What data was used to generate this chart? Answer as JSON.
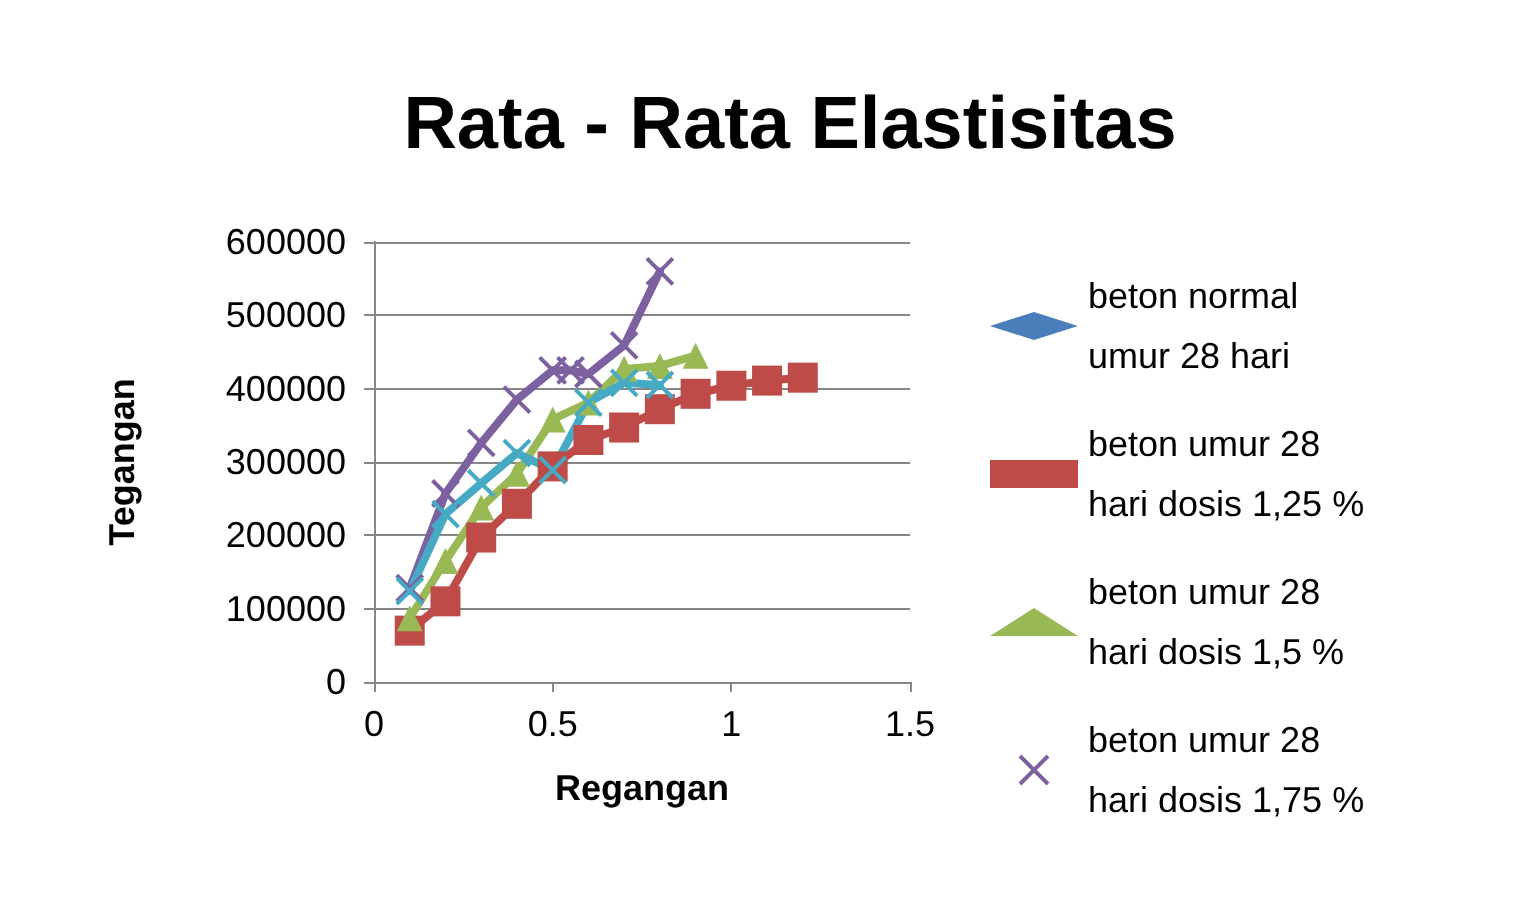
{
  "chart_data": {
    "type": "line",
    "title": "Rata - Rata Elastisitas",
    "xlabel": "Regangan",
    "ylabel": "Tegangan",
    "xlim": [
      0,
      1.5
    ],
    "xticks": [
      0,
      0.5,
      1,
      1.5
    ],
    "ylim": [
      0,
      600000
    ],
    "yticks": [
      0,
      100000,
      200000,
      300000,
      400000,
      500000,
      600000
    ],
    "grid": "y",
    "legend": "right",
    "series": [
      {
        "name": "beton normal umur 28 hari",
        "color": "#4a7ebb",
        "marker": "diamond"
      },
      {
        "name": "beton umur 28 hari dosis 1,25 %",
        "color": "#be4b48",
        "marker": "square",
        "x": [
          0.1,
          0.2,
          0.3,
          0.4,
          0.5,
          0.6,
          0.7,
          0.8,
          0.9,
          1.0,
          1.1,
          1.2
        ],
        "values": [
          70000,
          110000,
          197000,
          243000,
          294000,
          330000,
          347000,
          372000,
          393000,
          404000,
          411000,
          415000
        ]
      },
      {
        "name": "beton umur 28 hari dosis 1,5 %",
        "color": "#98b954",
        "marker": "triangle",
        "x": [
          0.1,
          0.2,
          0.3,
          0.4,
          0.5,
          0.6,
          0.7,
          0.8,
          0.9
        ],
        "values": [
          87000,
          165000,
          238000,
          284000,
          358000,
          381000,
          427000,
          431000,
          445000
        ]
      },
      {
        "name": "beton umur 28 hari dosis 1,75 %",
        "color": "#7d60a0",
        "marker": "cross",
        "x": [
          0.1,
          0.2,
          0.3,
          0.4,
          0.5,
          0.55,
          0.6,
          0.7,
          0.8
        ],
        "values": [
          128000,
          257000,
          326000,
          385000,
          425000,
          425000,
          420000,
          459000,
          560000
        ]
      },
      {
        "color": "#46aac5",
        "marker": "cross",
        "x": [
          0.1,
          0.2,
          0.3,
          0.4,
          0.5,
          0.6,
          0.7,
          0.8
        ],
        "values": [
          124000,
          229000,
          271000,
          312000,
          289000,
          381000,
          408000,
          405000
        ]
      }
    ]
  }
}
